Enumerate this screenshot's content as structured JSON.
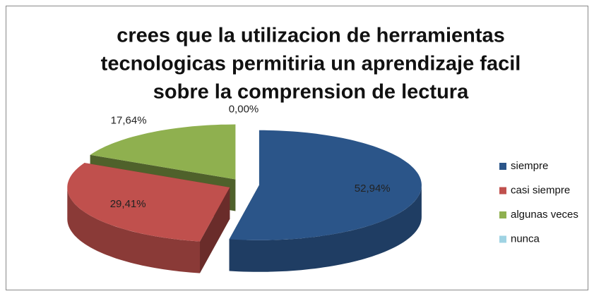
{
  "chart_data": {
    "type": "pie3d",
    "title": [
      "crees que la utilizacion de herramientas",
      "tecnologicas permitiria un aprendizaje facil",
      "sobre la comprension de lectura"
    ],
    "categories": [
      "siempre",
      "casi siempre",
      "algunas veces",
      "nunca"
    ],
    "values": [
      52.94,
      29.41,
      17.64,
      0
    ],
    "value_labels": [
      "52,94%",
      "29,41%",
      "17,64%",
      "0,00%"
    ],
    "colors": [
      "#2b5589",
      "#c0504d",
      "#8fb04f",
      "#9fd3e3"
    ],
    "legend": "right"
  }
}
